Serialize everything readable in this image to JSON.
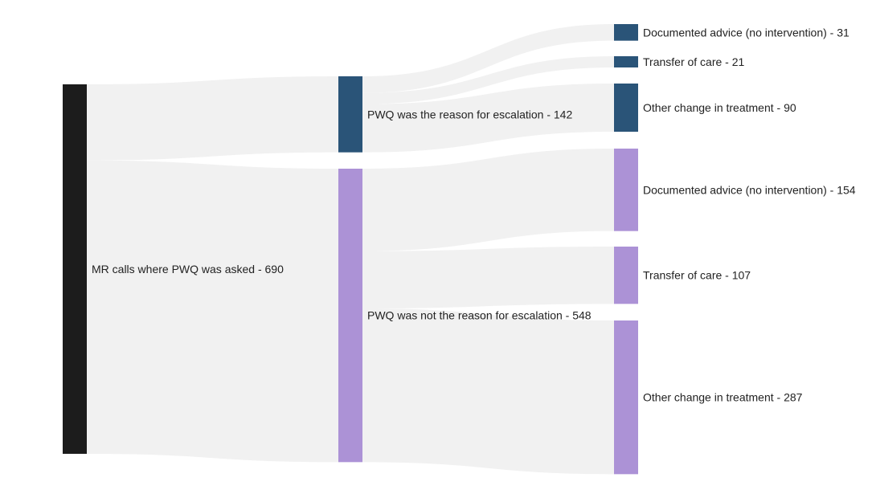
{
  "chart_data": {
    "type": "sankey",
    "colors": {
      "root": "#1c1c1c",
      "reason": "#2a5478",
      "not_reason": "#ac92d6",
      "link": "#f1f1f1"
    },
    "nodes": [
      {
        "id": "root",
        "label": "MR calls where PWQ was asked - 690",
        "value": 690,
        "column": 0,
        "color": "#1c1c1c"
      },
      {
        "id": "reason",
        "label": "PWQ was the reason for escalation - 142",
        "value": 142,
        "column": 1,
        "color": "#2a5478"
      },
      {
        "id": "not_reason",
        "label": "PWQ was not the reason for escalation - 548",
        "value": 548,
        "column": 1,
        "color": "#ac92d6"
      },
      {
        "id": "r_advice",
        "label": "Documented advice (no intervention) - 31",
        "value": 31,
        "column": 2,
        "color": "#2a5478"
      },
      {
        "id": "r_transfer",
        "label": "Transfer of care - 21",
        "value": 21,
        "column": 2,
        "color": "#2a5478"
      },
      {
        "id": "r_other",
        "label": "Other change in treatment - 90",
        "value": 90,
        "column": 2,
        "color": "#2a5478"
      },
      {
        "id": "n_advice",
        "label": "Documented advice (no intervention) - 154",
        "value": 154,
        "column": 2,
        "color": "#ac92d6"
      },
      {
        "id": "n_transfer",
        "label": "Transfer of care - 107",
        "value": 107,
        "column": 2,
        "color": "#ac92d6"
      },
      {
        "id": "n_other",
        "label": "Other change in treatment - 287",
        "value": 287,
        "column": 2,
        "color": "#ac92d6"
      }
    ],
    "links": [
      {
        "source": "root",
        "target": "reason",
        "value": 142
      },
      {
        "source": "root",
        "target": "not_reason",
        "value": 548
      },
      {
        "source": "reason",
        "target": "r_advice",
        "value": 31
      },
      {
        "source": "reason",
        "target": "r_transfer",
        "value": 21
      },
      {
        "source": "reason",
        "target": "r_other",
        "value": 90
      },
      {
        "source": "not_reason",
        "target": "n_advice",
        "value": 154
      },
      {
        "source": "not_reason",
        "target": "n_transfer",
        "value": 107
      },
      {
        "source": "not_reason",
        "target": "n_other",
        "value": 287
      }
    ]
  }
}
